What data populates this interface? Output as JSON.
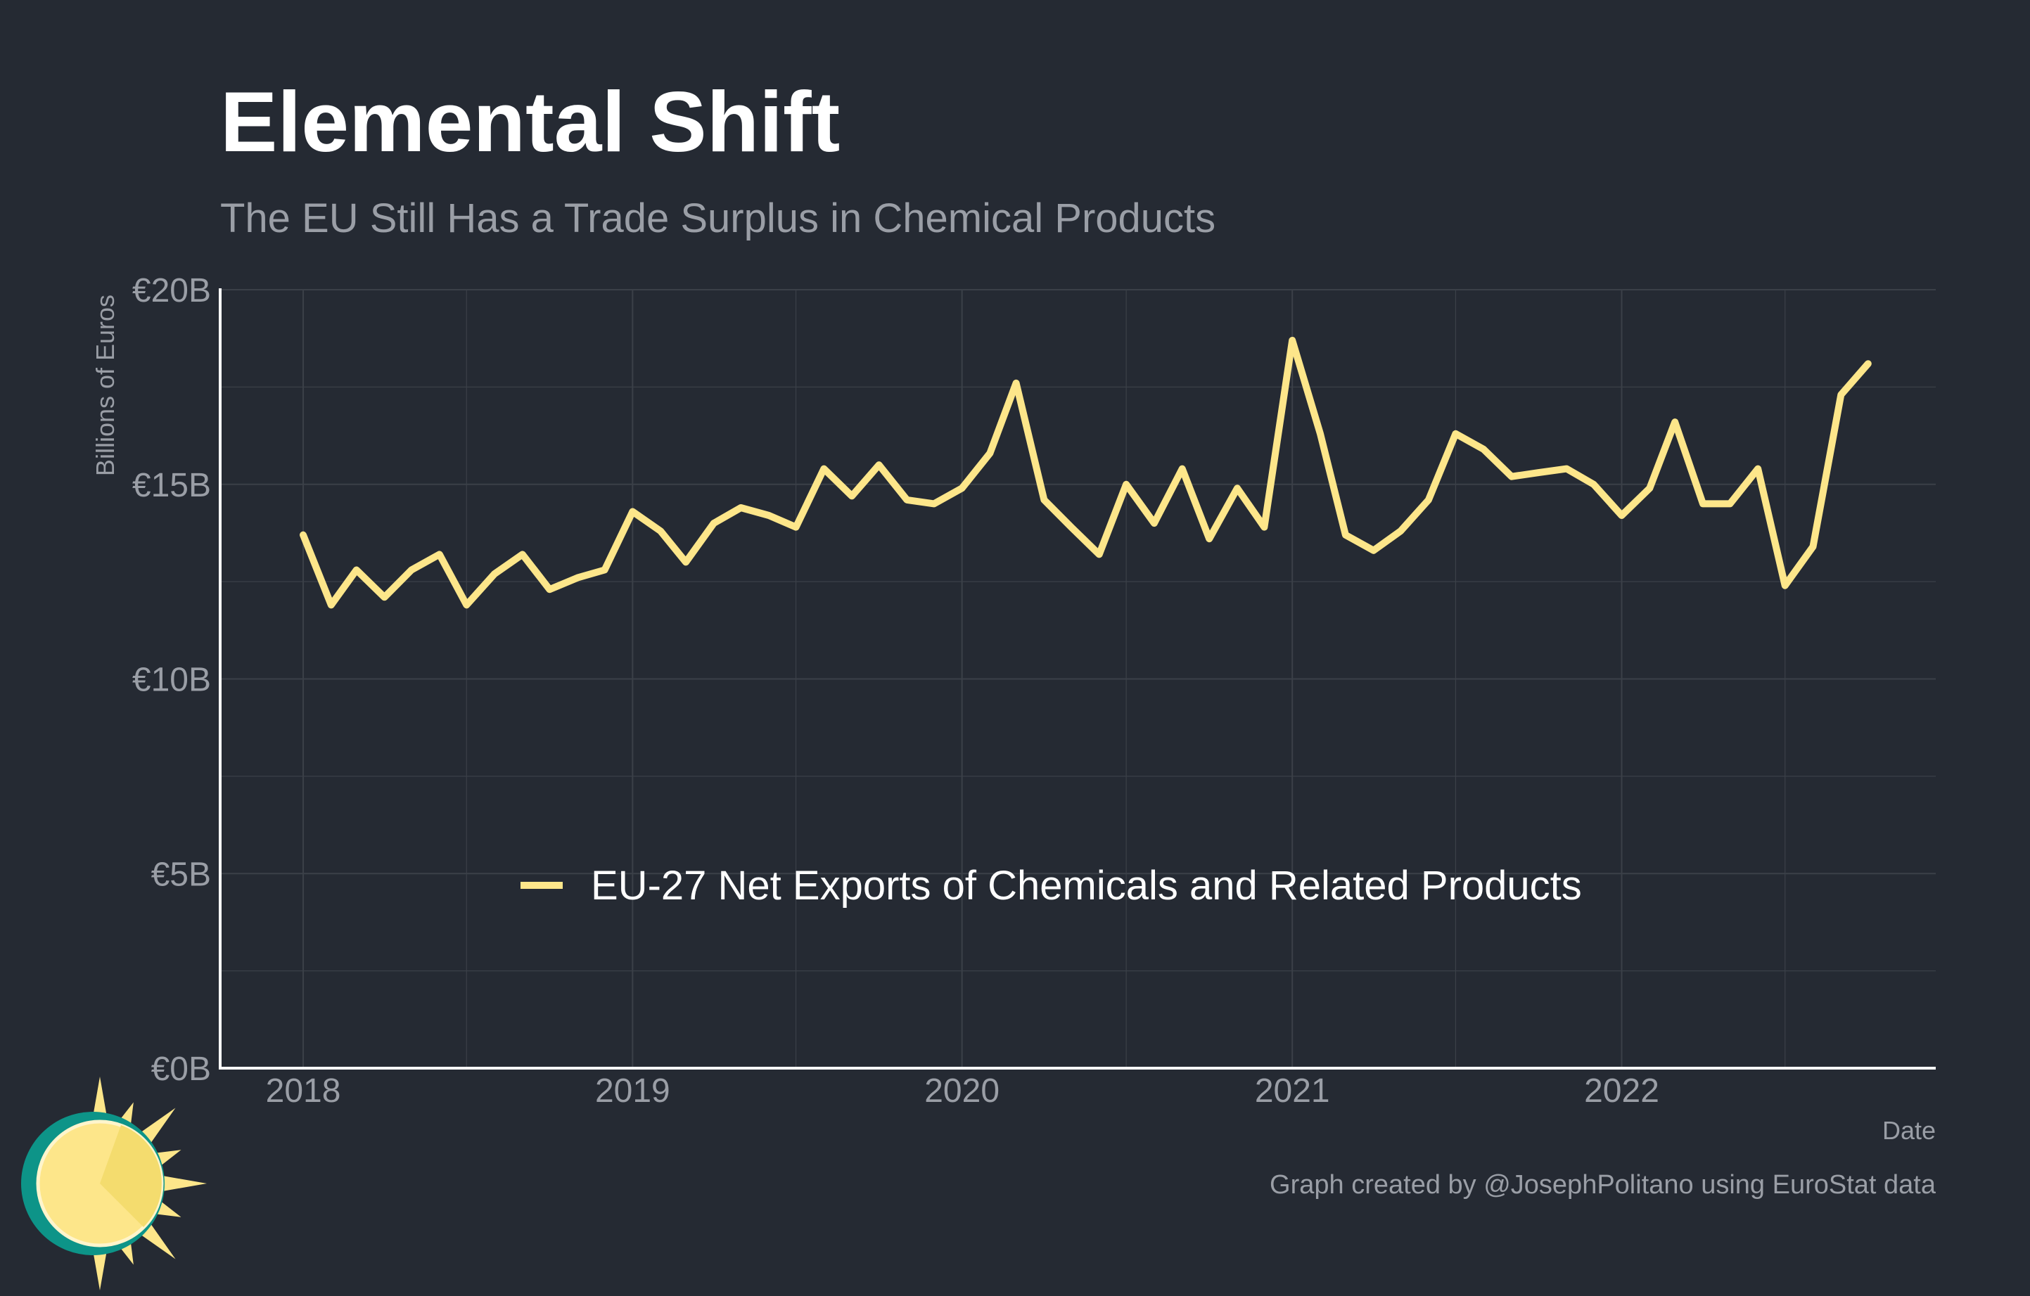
{
  "header": {
    "title": "Elemental Shift",
    "subtitle": "The EU Still Has a Trade Surplus in Chemical Products"
  },
  "footer": {
    "caption": "Graph created by @JosephPolitano using EuroStat data"
  },
  "colors": {
    "background": "#252a33",
    "line": "#fde68a",
    "grid": "#3b4048",
    "axis": "#ffffff",
    "text_muted": "#9a9ea6",
    "logo_sun": "#fde68a",
    "logo_ring": "#0d9488"
  },
  "logo": {
    "icon": "sun-logo-icon"
  },
  "chart_data": {
    "type": "line",
    "title": "Elemental Shift",
    "subtitle": "The EU Still Has a Trade Surplus in Chemical Products",
    "xlabel": "Date",
    "ylabel": "Billions of Euros",
    "ylim": [
      0,
      20
    ],
    "xlim": [
      "2017-10-01",
      "2022-12-15"
    ],
    "y_ticks": [
      {
        "value": 0,
        "label": "€0B"
      },
      {
        "value": 5,
        "label": "€5B"
      },
      {
        "value": 10,
        "label": "€10B"
      },
      {
        "value": 15,
        "label": "€15B"
      },
      {
        "value": 20,
        "label": "€20B"
      }
    ],
    "x_ticks": [
      {
        "value": "2018-01-01",
        "label": "2018"
      },
      {
        "value": "2019-01-01",
        "label": "2019"
      },
      {
        "value": "2020-01-01",
        "label": "2020"
      },
      {
        "value": "2021-01-01",
        "label": "2021"
      },
      {
        "value": "2022-01-01",
        "label": "2022"
      }
    ],
    "grid": true,
    "legend_position": "bottom-center",
    "series": [
      {
        "name": "EU-27 Net Exports of Chemicals and Related Products",
        "color": "#fde68a",
        "x": [
          "2018-01",
          "2018-02",
          "2018-03",
          "2018-04",
          "2018-05",
          "2018-06",
          "2018-07",
          "2018-08",
          "2018-09",
          "2018-10",
          "2018-11",
          "2018-12",
          "2019-01",
          "2019-02",
          "2019-03",
          "2019-04",
          "2019-05",
          "2019-06",
          "2019-07",
          "2019-08",
          "2019-09",
          "2019-10",
          "2019-11",
          "2019-12",
          "2020-01",
          "2020-02",
          "2020-03",
          "2020-04",
          "2020-05",
          "2020-06",
          "2020-07",
          "2020-08",
          "2020-09",
          "2020-10",
          "2020-11",
          "2020-12",
          "2021-01",
          "2021-02",
          "2021-03",
          "2021-04",
          "2021-05",
          "2021-06",
          "2021-07",
          "2021-08",
          "2021-09",
          "2021-10",
          "2021-11",
          "2021-12",
          "2022-01",
          "2022-02",
          "2022-03",
          "2022-04",
          "2022-05",
          "2022-06",
          "2022-07",
          "2022-08",
          "2022-09",
          "2022-10"
        ],
        "values": [
          13.7,
          11.9,
          12.8,
          12.1,
          12.8,
          13.2,
          11.9,
          12.7,
          13.2,
          12.3,
          12.6,
          12.8,
          14.3,
          13.8,
          13.0,
          14.0,
          14.4,
          14.2,
          13.9,
          15.4,
          14.7,
          15.5,
          14.6,
          14.5,
          14.9,
          15.8,
          17.6,
          14.6,
          13.9,
          13.2,
          15.0,
          14.0,
          15.4,
          13.6,
          14.9,
          13.9,
          18.7,
          16.3,
          13.7,
          13.3,
          13.8,
          14.6,
          16.3,
          15.9,
          15.2,
          15.3,
          15.4,
          15.0,
          14.2,
          14.9,
          16.6,
          14.5,
          14.5,
          15.4,
          12.4,
          13.4,
          17.3,
          18.1
        ]
      }
    ]
  }
}
